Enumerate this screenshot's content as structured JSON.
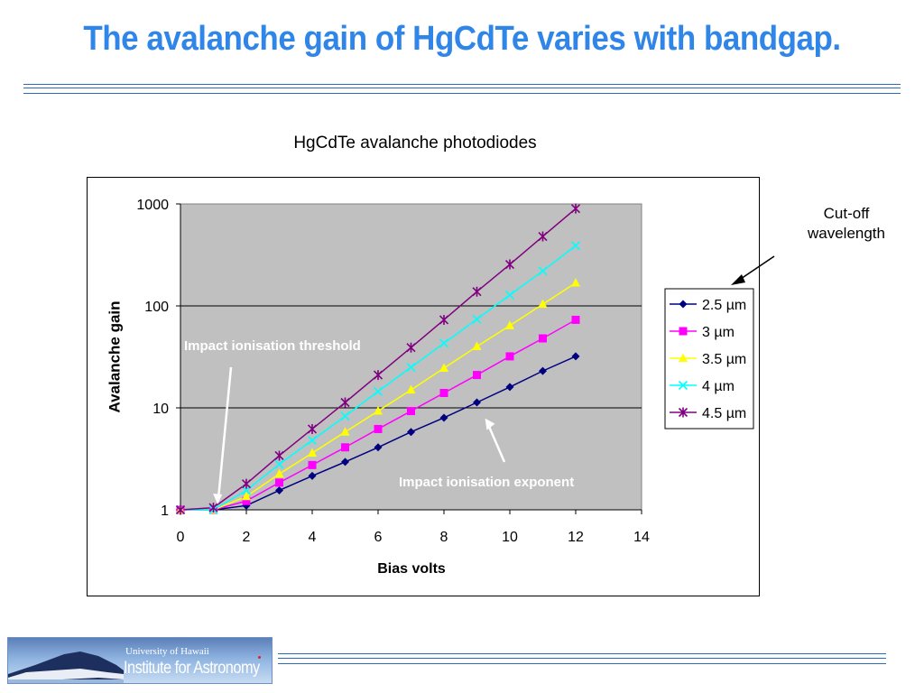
{
  "slide": {
    "title": "The avalanche gain of HgCdTe varies with bandgap.",
    "title_color": "#2f86e8",
    "rule_color": "#2b6cb8"
  },
  "annotation": {
    "cutoff_label_line1": "Cut-off",
    "cutoff_label_line2": "wavelength"
  },
  "logo": {
    "line1": "University of Hawaii",
    "line2": "Institute for Astronomy"
  },
  "chart_data": {
    "type": "line",
    "title": "HgCdTe avalanche photodiodes",
    "xlabel": "Bias volts",
    "ylabel": "Avalanche gain",
    "xlim": [
      0,
      14
    ],
    "ylim": [
      1,
      1000
    ],
    "yscale": "log",
    "x_ticks": [
      0,
      2,
      4,
      6,
      8,
      10,
      12,
      14
    ],
    "y_ticks": [
      1,
      10,
      100,
      1000
    ],
    "grid": "horizontal",
    "plot_background": "#c0c0c0",
    "legend_position": "right",
    "annotations": [
      {
        "text": "Impact ionisation threshold",
        "points_to": {
          "x": 1.1,
          "y": 1.0
        }
      },
      {
        "text": "Impact ionisation exponent",
        "points_to": {
          "x": 9.0,
          "y": 10.5
        }
      }
    ],
    "x": [
      0,
      1,
      2,
      3,
      4,
      5,
      6,
      7,
      8,
      9,
      10,
      11,
      12
    ],
    "series": [
      {
        "name": "2.5 µm",
        "color": "#000080",
        "marker": "diamond",
        "values": [
          1,
          1,
          1.1,
          1.55,
          2.15,
          2.95,
          4.1,
          5.8,
          8.0,
          11.3,
          16,
          23,
          32
        ]
      },
      {
        "name": "3 µm",
        "color": "#ff00ff",
        "marker": "square",
        "values": [
          1,
          1,
          1.22,
          1.85,
          2.75,
          4.1,
          6.2,
          9.3,
          14,
          21,
          32,
          48,
          73
        ]
      },
      {
        "name": "3.5 µm",
        "color": "#ffff00",
        "marker": "triangle",
        "values": [
          1,
          1,
          1.35,
          2.25,
          3.6,
          5.8,
          9.3,
          15,
          24.5,
          40,
          64,
          104,
          168
        ]
      },
      {
        "name": "4 µm",
        "color": "#00ffff",
        "marker": "x",
        "values": [
          1,
          1,
          1.55,
          2.8,
          4.8,
          8.3,
          14.5,
          25,
          43,
          74,
          128,
          220,
          390
        ]
      },
      {
        "name": "4.5 µm",
        "color": "#800080",
        "marker": "star",
        "values": [
          1,
          1.05,
          1.8,
          3.4,
          6.2,
          11.3,
          21,
          39,
          73,
          138,
          255,
          480,
          900
        ]
      }
    ]
  }
}
